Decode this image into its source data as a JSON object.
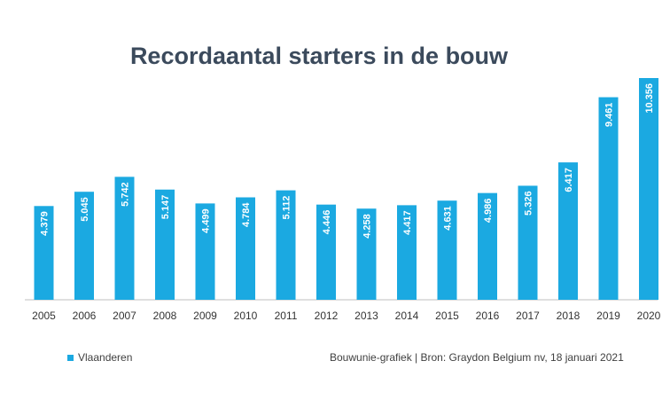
{
  "chart_data": {
    "type": "bar",
    "title": "Recordaantal starters in de bouw",
    "categories": [
      "2005",
      "2006",
      "2007",
      "2008",
      "2009",
      "2010",
      "2011",
      "2012",
      "2013",
      "2014",
      "2015",
      "2016",
      "2017",
      "2018",
      "2019",
      "2020"
    ],
    "series": [
      {
        "name": "Vlaanderen",
        "values": [
          4379,
          5045,
          5742,
          5147,
          4499,
          4784,
          5112,
          4446,
          4258,
          4417,
          4631,
          4986,
          5326,
          6417,
          9461,
          10356
        ]
      }
    ],
    "data_labels": [
      "4.379",
      "5.045",
      "5.742",
      "5.147",
      "4.499",
      "4.784",
      "5.112",
      "4.446",
      "4.258",
      "4.417",
      "4.631",
      "4.986",
      "5.326",
      "6.417",
      "9.461",
      "10.356"
    ],
    "ylim": [
      0,
      10356
    ],
    "grid": false,
    "legend_position": "bottom-left",
    "bar_color": "#1ba9e1"
  },
  "source_note": "Bouwunie-grafiek | Bron: Graydon Belgium nv, 18 januari 2021"
}
